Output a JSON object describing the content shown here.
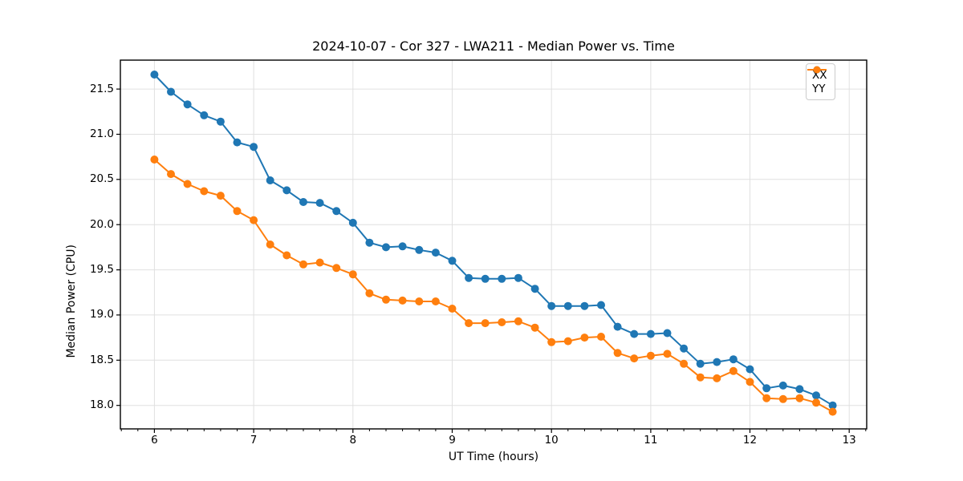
{
  "chart_data": {
    "type": "line",
    "title": "2024-10-07 - Cor 327 - LWA211 - Median Power vs. Time",
    "xlabel": "UT Time (hours)",
    "ylabel": "Median Power (CPU)",
    "xlim": [
      5.657,
      13.176
    ],
    "ylim": [
      17.74,
      21.82
    ],
    "x_ticks": [
      6,
      7,
      8,
      9,
      10,
      11,
      12,
      13
    ],
    "x_tick_labels": [
      "6",
      "7",
      "8",
      "9",
      "10",
      "11",
      "12",
      "13"
    ],
    "x_minor_step": 0.1666667,
    "y_ticks": [
      18.0,
      18.5,
      19.0,
      19.5,
      20.0,
      20.5,
      21.0,
      21.5
    ],
    "y_tick_labels": [
      "18.0",
      "18.5",
      "19.0",
      "19.5",
      "20.0",
      "20.5",
      "21.0",
      "21.5"
    ],
    "grid": true,
    "grid_color": "#e0e0e0",
    "legend_position": "upper right",
    "marker": "circle",
    "x": [
      6.0,
      6.1667,
      6.3333,
      6.5,
      6.6667,
      6.8333,
      7.0,
      7.1667,
      7.3333,
      7.5,
      7.6667,
      7.8333,
      8.0,
      8.1667,
      8.3333,
      8.5,
      8.6667,
      8.8333,
      9.0,
      9.1667,
      9.3333,
      9.5,
      9.6667,
      9.8333,
      10.0,
      10.1667,
      10.3333,
      10.5,
      10.6667,
      10.8333,
      11.0,
      11.1667,
      11.3333,
      11.5,
      11.6667,
      11.8333,
      12.0,
      12.1667,
      12.3333,
      12.5,
      12.6667,
      12.8333
    ],
    "series": [
      {
        "name": "XX",
        "color": "#1f77b4",
        "values": [
          21.66,
          21.47,
          21.33,
          21.21,
          21.14,
          20.91,
          20.86,
          20.49,
          20.38,
          20.25,
          20.24,
          20.15,
          20.02,
          19.8,
          19.75,
          19.76,
          19.72,
          19.69,
          19.6,
          19.41,
          19.4,
          19.4,
          19.41,
          19.29,
          19.1,
          19.1,
          19.1,
          19.11,
          18.87,
          18.79,
          18.79,
          18.8,
          18.63,
          18.46,
          18.48,
          18.51,
          18.4,
          18.19,
          18.22,
          18.18,
          18.11,
          18.0
        ]
      },
      {
        "name": "YY",
        "color": "#ff7f0e",
        "values": [
          20.72,
          20.56,
          20.45,
          20.37,
          20.32,
          20.15,
          20.05,
          19.78,
          19.66,
          19.56,
          19.58,
          19.52,
          19.45,
          19.24,
          19.17,
          19.16,
          19.15,
          19.15,
          19.07,
          18.91,
          18.91,
          18.92,
          18.93,
          18.86,
          18.7,
          18.71,
          18.75,
          18.76,
          18.58,
          18.52,
          18.55,
          18.57,
          18.46,
          18.31,
          18.3,
          18.38,
          18.26,
          18.08,
          18.07,
          18.08,
          18.03,
          17.93
        ]
      }
    ]
  }
}
